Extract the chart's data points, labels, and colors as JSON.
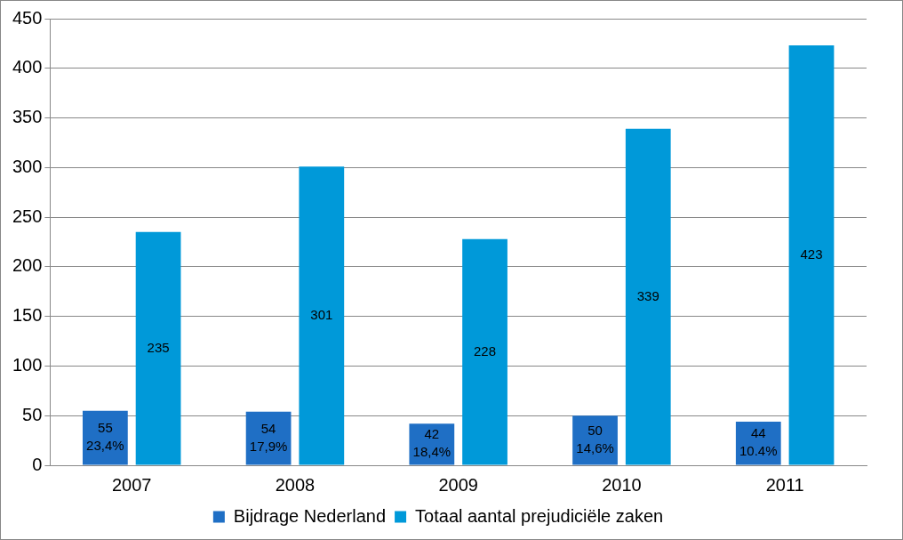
{
  "chart_data": {
    "type": "bar",
    "categories": [
      "2007",
      "2008",
      "2009",
      "2010",
      "2011"
    ],
    "series": [
      {
        "name": "Bijdrage Nederland",
        "color": "#1f6fc5",
        "values": [
          55,
          54,
          42,
          50,
          44
        ],
        "value_labels": [
          "55\n23,4%",
          "54\n17,9%",
          "42\n18,4%",
          "50\n14,6%",
          "44\n10.4%"
        ]
      },
      {
        "name": "Totaal aantal prejudiciële zaken",
        "color": "#0099d9",
        "values": [
          235,
          301,
          228,
          339,
          423
        ],
        "value_labels": [
          "235",
          "301",
          "228",
          "339",
          "423"
        ]
      }
    ],
    "ylim": [
      0,
      450
    ],
    "yticks": [
      0,
      50,
      100,
      150,
      200,
      250,
      300,
      350,
      400,
      450
    ],
    "grid": "y",
    "legend": "bottom"
  }
}
